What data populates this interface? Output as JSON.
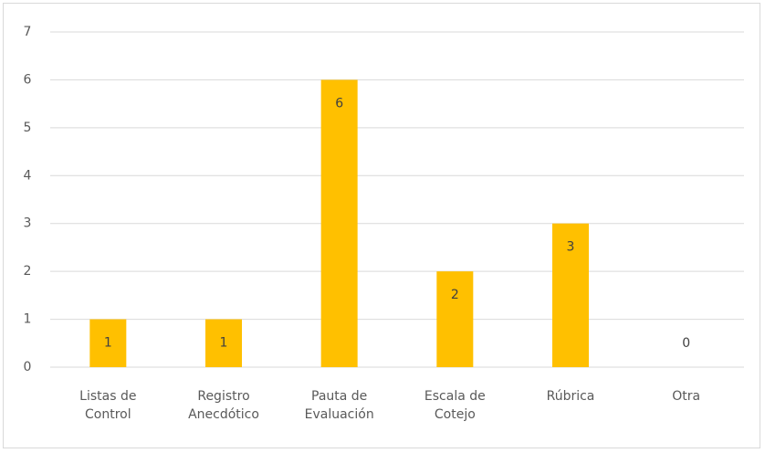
{
  "chart_data": {
    "type": "bar",
    "categories": [
      "Listas de Control",
      "Registro Anecdótico",
      "Pauta de Evaluación",
      "Escala de Cotejo",
      "Rúbrica",
      "Otra"
    ],
    "values": [
      1,
      1,
      6,
      2,
      3,
      0
    ],
    "color": "#FFC000",
    "ylim": [
      0,
      7
    ],
    "yticks": [
      0,
      1,
      2,
      3,
      4,
      5,
      6,
      7
    ],
    "grid": true
  }
}
